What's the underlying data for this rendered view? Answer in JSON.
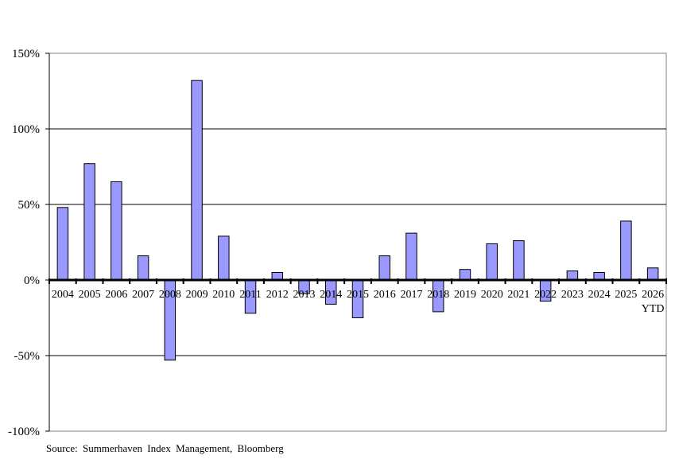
{
  "chart_data": {
    "type": "bar",
    "categories": [
      "2004",
      "2005",
      "2006",
      "2007",
      "2008",
      "2009",
      "2010",
      "2011",
      "2012",
      "2013",
      "2014",
      "2015",
      "2016",
      "2017",
      "2018",
      "2019",
      "2020",
      "2021",
      "2022",
      "2023",
      "2024",
      "2025",
      "2026"
    ],
    "category_sublabels": {
      "2026": "YTD"
    },
    "values": [
      48,
      77,
      65,
      16,
      -53,
      132,
      29,
      -22,
      5,
      -9,
      -16,
      -25,
      16,
      31,
      -21,
      7,
      24,
      26,
      -14,
      6,
      5,
      39,
      8
    ],
    "ylim": [
      -100,
      150
    ],
    "yticks": [
      150,
      100,
      50,
      0,
      -50,
      -100
    ],
    "ytick_labels": [
      "150%",
      "100%",
      "50%",
      "0%",
      "-50%",
      "-100%"
    ],
    "title": "",
    "xlabel": "",
    "ylabel": "",
    "grid": true,
    "bar_color": "#9999ff"
  },
  "footer": {
    "source": "Source: Summerhaven Index Management, Bloomberg"
  }
}
